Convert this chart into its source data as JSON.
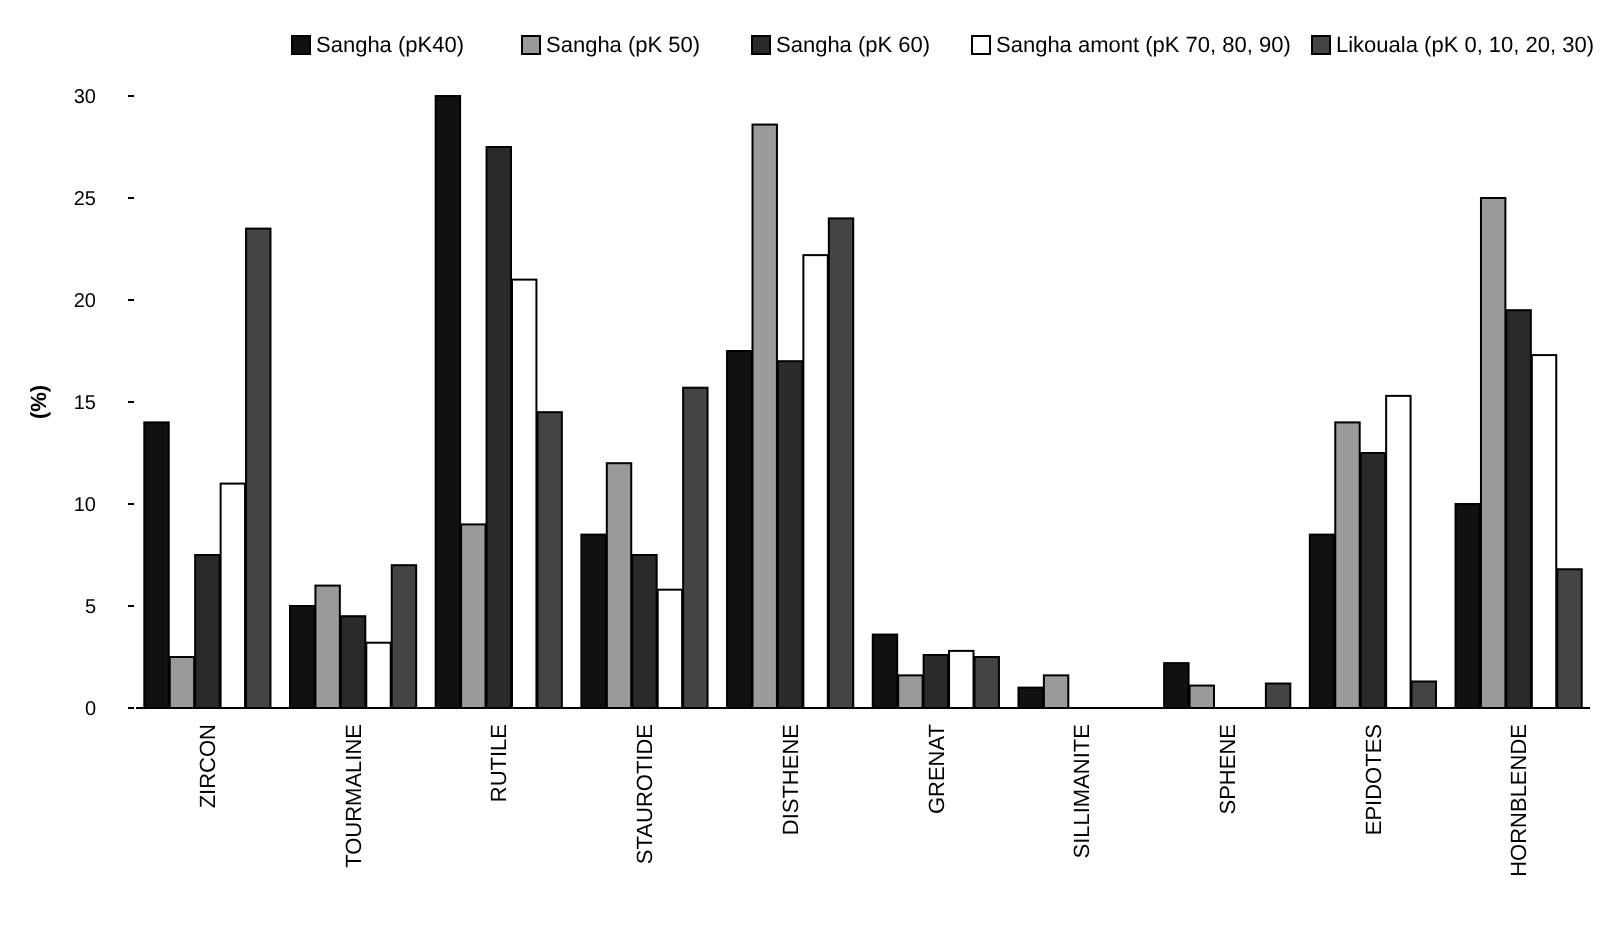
{
  "chart_data": {
    "type": "bar",
    "ylabel": "(%)",
    "categories": [
      "ZIRCON",
      "TOURMALINE",
      "RUTILE",
      "STAUROTIDE",
      "DISTHENE",
      "GRENAT",
      "SILLIMANITE",
      "SPHENE",
      "EPIDOTES",
      "HORNBLENDE"
    ],
    "series": [
      {
        "name": "Sangha (pK40)",
        "color": "#111111",
        "values": [
          14,
          5,
          30,
          8.5,
          17.5,
          3.6,
          1,
          2.2,
          8.5,
          10
        ]
      },
      {
        "name": "Sangha (pK 50)",
        "color": "#9a9a9a",
        "values": [
          2.5,
          6,
          9,
          12,
          28.6,
          1.6,
          1.6,
          1.1,
          14,
          25
        ]
      },
      {
        "name": "Sangha (pK 60)",
        "color": "#2a2a2a",
        "values": [
          7.5,
          4.5,
          27.5,
          7.5,
          17,
          2.6,
          0,
          0,
          12.5,
          19.5
        ]
      },
      {
        "name": "Sangha amont (pK 70, 80, 90)",
        "color": "#ffffff",
        "values": [
          11,
          3.2,
          21,
          5.8,
          22.2,
          2.8,
          0,
          0,
          15.3,
          17.3
        ]
      },
      {
        "name": "Likouala (pK 0, 10, 20, 30)",
        "color": "#444444",
        "values": [
          23.5,
          7,
          14.5,
          15.7,
          24,
          2.5,
          0,
          1.2,
          1.3,
          6.8
        ]
      }
    ],
    "ylim": [
      0,
      30
    ],
    "yticks": [
      0,
      5,
      10,
      15,
      20,
      25,
      30
    ],
    "grid": false,
    "legend": "top"
  }
}
